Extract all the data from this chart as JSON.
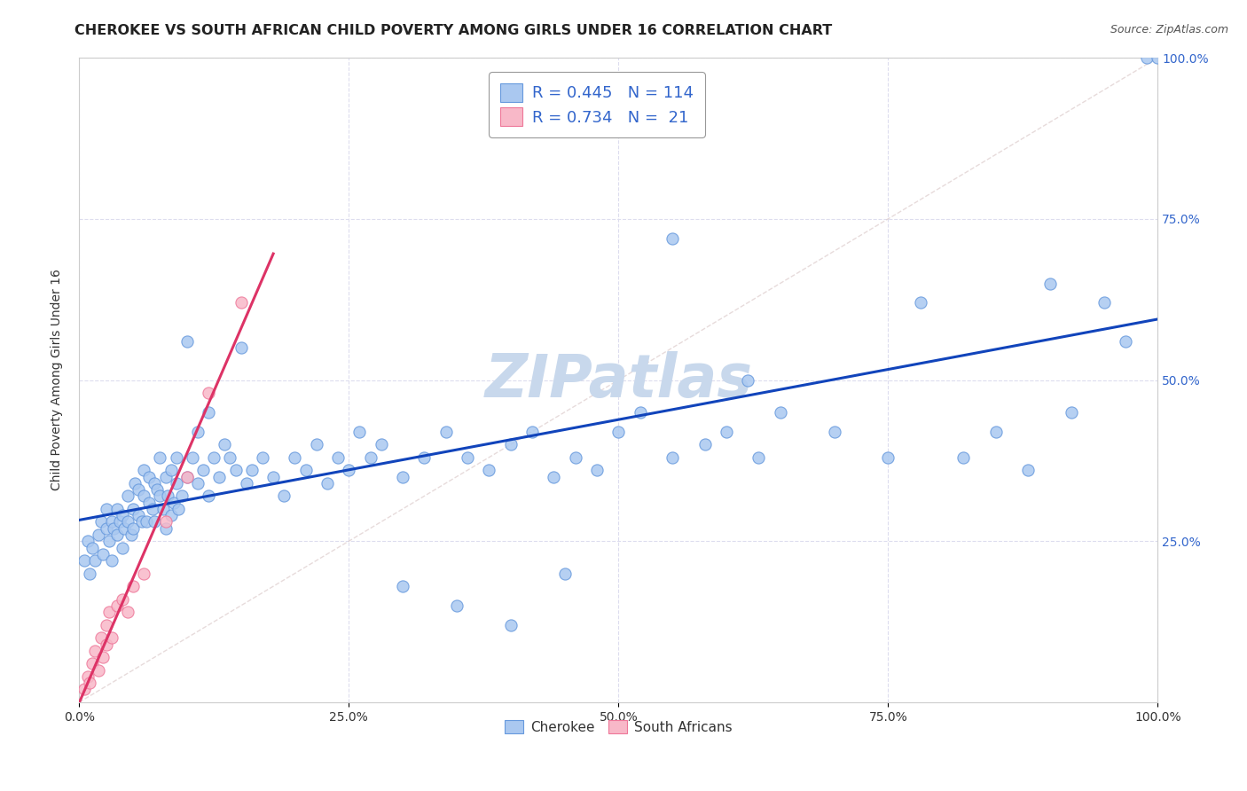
{
  "title": "CHEROKEE VS SOUTH AFRICAN CHILD POVERTY AMONG GIRLS UNDER 16 CORRELATION CHART",
  "source": "Source: ZipAtlas.com",
  "ylabel": "Child Poverty Among Girls Under 16",
  "xlim": [
    0,
    1
  ],
  "ylim": [
    0,
    1
  ],
  "xtick_vals": [
    0.0,
    0.25,
    0.5,
    0.75,
    1.0
  ],
  "xtick_labels": [
    "0.0%",
    "25.0%",
    "50.0%",
    "75.0%",
    "100.0%"
  ],
  "ytick_vals": [
    0.25,
    0.5,
    0.75,
    1.0
  ],
  "ytick_labels": [
    "25.0%",
    "50.0%",
    "75.0%",
    "100.0%"
  ],
  "cherokee_color": "#aac8f0",
  "cherokee_edge": "#6699dd",
  "sa_color": "#f8b8c8",
  "sa_edge": "#ee7799",
  "cherokee_line_color": "#1144bb",
  "sa_line_color": "#dd3366",
  "diagonal_color": "#cccccc",
  "watermark": "ZIPatlas",
  "watermark_color": "#c8d8ec",
  "legend_label_cherokee": "R = 0.445   N = 114",
  "legend_label_sa": "R = 0.734   N =  21",
  "bottom_legend_cherokee": "Cherokee",
  "bottom_legend_sa": "South Africans",
  "title_fontsize": 11.5,
  "axis_label_fontsize": 10,
  "tick_fontsize": 10,
  "legend_fontsize": 13,
  "source_fontsize": 9,
  "watermark_fontsize": 48,
  "background_color": "#ffffff",
  "ytick_color": "#3366cc",
  "xtick_color": "#333333",
  "grid_color": "#ddddee",
  "spine_color": "#cccccc",
  "cherokee_x": [
    0.005,
    0.008,
    0.01,
    0.012,
    0.015,
    0.018,
    0.02,
    0.022,
    0.025,
    0.025,
    0.028,
    0.03,
    0.03,
    0.032,
    0.035,
    0.035,
    0.038,
    0.04,
    0.04,
    0.042,
    0.045,
    0.045,
    0.048,
    0.05,
    0.05,
    0.052,
    0.055,
    0.055,
    0.058,
    0.06,
    0.06,
    0.062,
    0.065,
    0.065,
    0.068,
    0.07,
    0.07,
    0.072,
    0.075,
    0.075,
    0.078,
    0.08,
    0.08,
    0.082,
    0.085,
    0.085,
    0.088,
    0.09,
    0.09,
    0.092,
    0.095,
    0.1,
    0.1,
    0.105,
    0.11,
    0.11,
    0.115,
    0.12,
    0.12,
    0.125,
    0.13,
    0.135,
    0.14,
    0.145,
    0.15,
    0.155,
    0.16,
    0.17,
    0.18,
    0.19,
    0.2,
    0.21,
    0.22,
    0.23,
    0.24,
    0.25,
    0.26,
    0.27,
    0.28,
    0.3,
    0.32,
    0.34,
    0.36,
    0.38,
    0.4,
    0.42,
    0.44,
    0.46,
    0.48,
    0.5,
    0.52,
    0.55,
    0.58,
    0.6,
    0.63,
    0.65,
    0.7,
    0.75,
    0.78,
    0.82,
    0.85,
    0.88,
    0.9,
    0.92,
    0.95,
    0.97,
    0.99,
    1.0,
    0.55,
    0.62,
    0.3,
    0.35,
    0.4,
    0.45
  ],
  "cherokee_y": [
    0.22,
    0.25,
    0.2,
    0.24,
    0.22,
    0.26,
    0.28,
    0.23,
    0.27,
    0.3,
    0.25,
    0.28,
    0.22,
    0.27,
    0.26,
    0.3,
    0.28,
    0.24,
    0.29,
    0.27,
    0.28,
    0.32,
    0.26,
    0.3,
    0.27,
    0.34,
    0.29,
    0.33,
    0.28,
    0.32,
    0.36,
    0.28,
    0.31,
    0.35,
    0.3,
    0.34,
    0.28,
    0.33,
    0.32,
    0.38,
    0.3,
    0.27,
    0.35,
    0.32,
    0.29,
    0.36,
    0.31,
    0.34,
    0.38,
    0.3,
    0.32,
    0.35,
    0.56,
    0.38,
    0.34,
    0.42,
    0.36,
    0.32,
    0.45,
    0.38,
    0.35,
    0.4,
    0.38,
    0.36,
    0.55,
    0.34,
    0.36,
    0.38,
    0.35,
    0.32,
    0.38,
    0.36,
    0.4,
    0.34,
    0.38,
    0.36,
    0.42,
    0.38,
    0.4,
    0.35,
    0.38,
    0.42,
    0.38,
    0.36,
    0.4,
    0.42,
    0.35,
    0.38,
    0.36,
    0.42,
    0.45,
    0.38,
    0.4,
    0.42,
    0.38,
    0.45,
    0.42,
    0.38,
    0.62,
    0.38,
    0.42,
    0.36,
    0.65,
    0.45,
    0.62,
    0.56,
    1.0,
    1.0,
    0.72,
    0.5,
    0.18,
    0.15,
    0.12,
    0.2
  ],
  "sa_x": [
    0.005,
    0.008,
    0.01,
    0.012,
    0.015,
    0.018,
    0.02,
    0.022,
    0.025,
    0.025,
    0.028,
    0.03,
    0.035,
    0.04,
    0.045,
    0.05,
    0.06,
    0.08,
    0.1,
    0.12,
    0.15
  ],
  "sa_y": [
    0.02,
    0.04,
    0.03,
    0.06,
    0.08,
    0.05,
    0.1,
    0.07,
    0.12,
    0.09,
    0.14,
    0.1,
    0.15,
    0.16,
    0.14,
    0.18,
    0.2,
    0.28,
    0.35,
    0.48,
    0.62
  ],
  "sa_trend_x0": 0.0,
  "sa_trend_x1": 0.18,
  "cherokee_trend_x0": 0.0,
  "cherokee_trend_x1": 1.0
}
